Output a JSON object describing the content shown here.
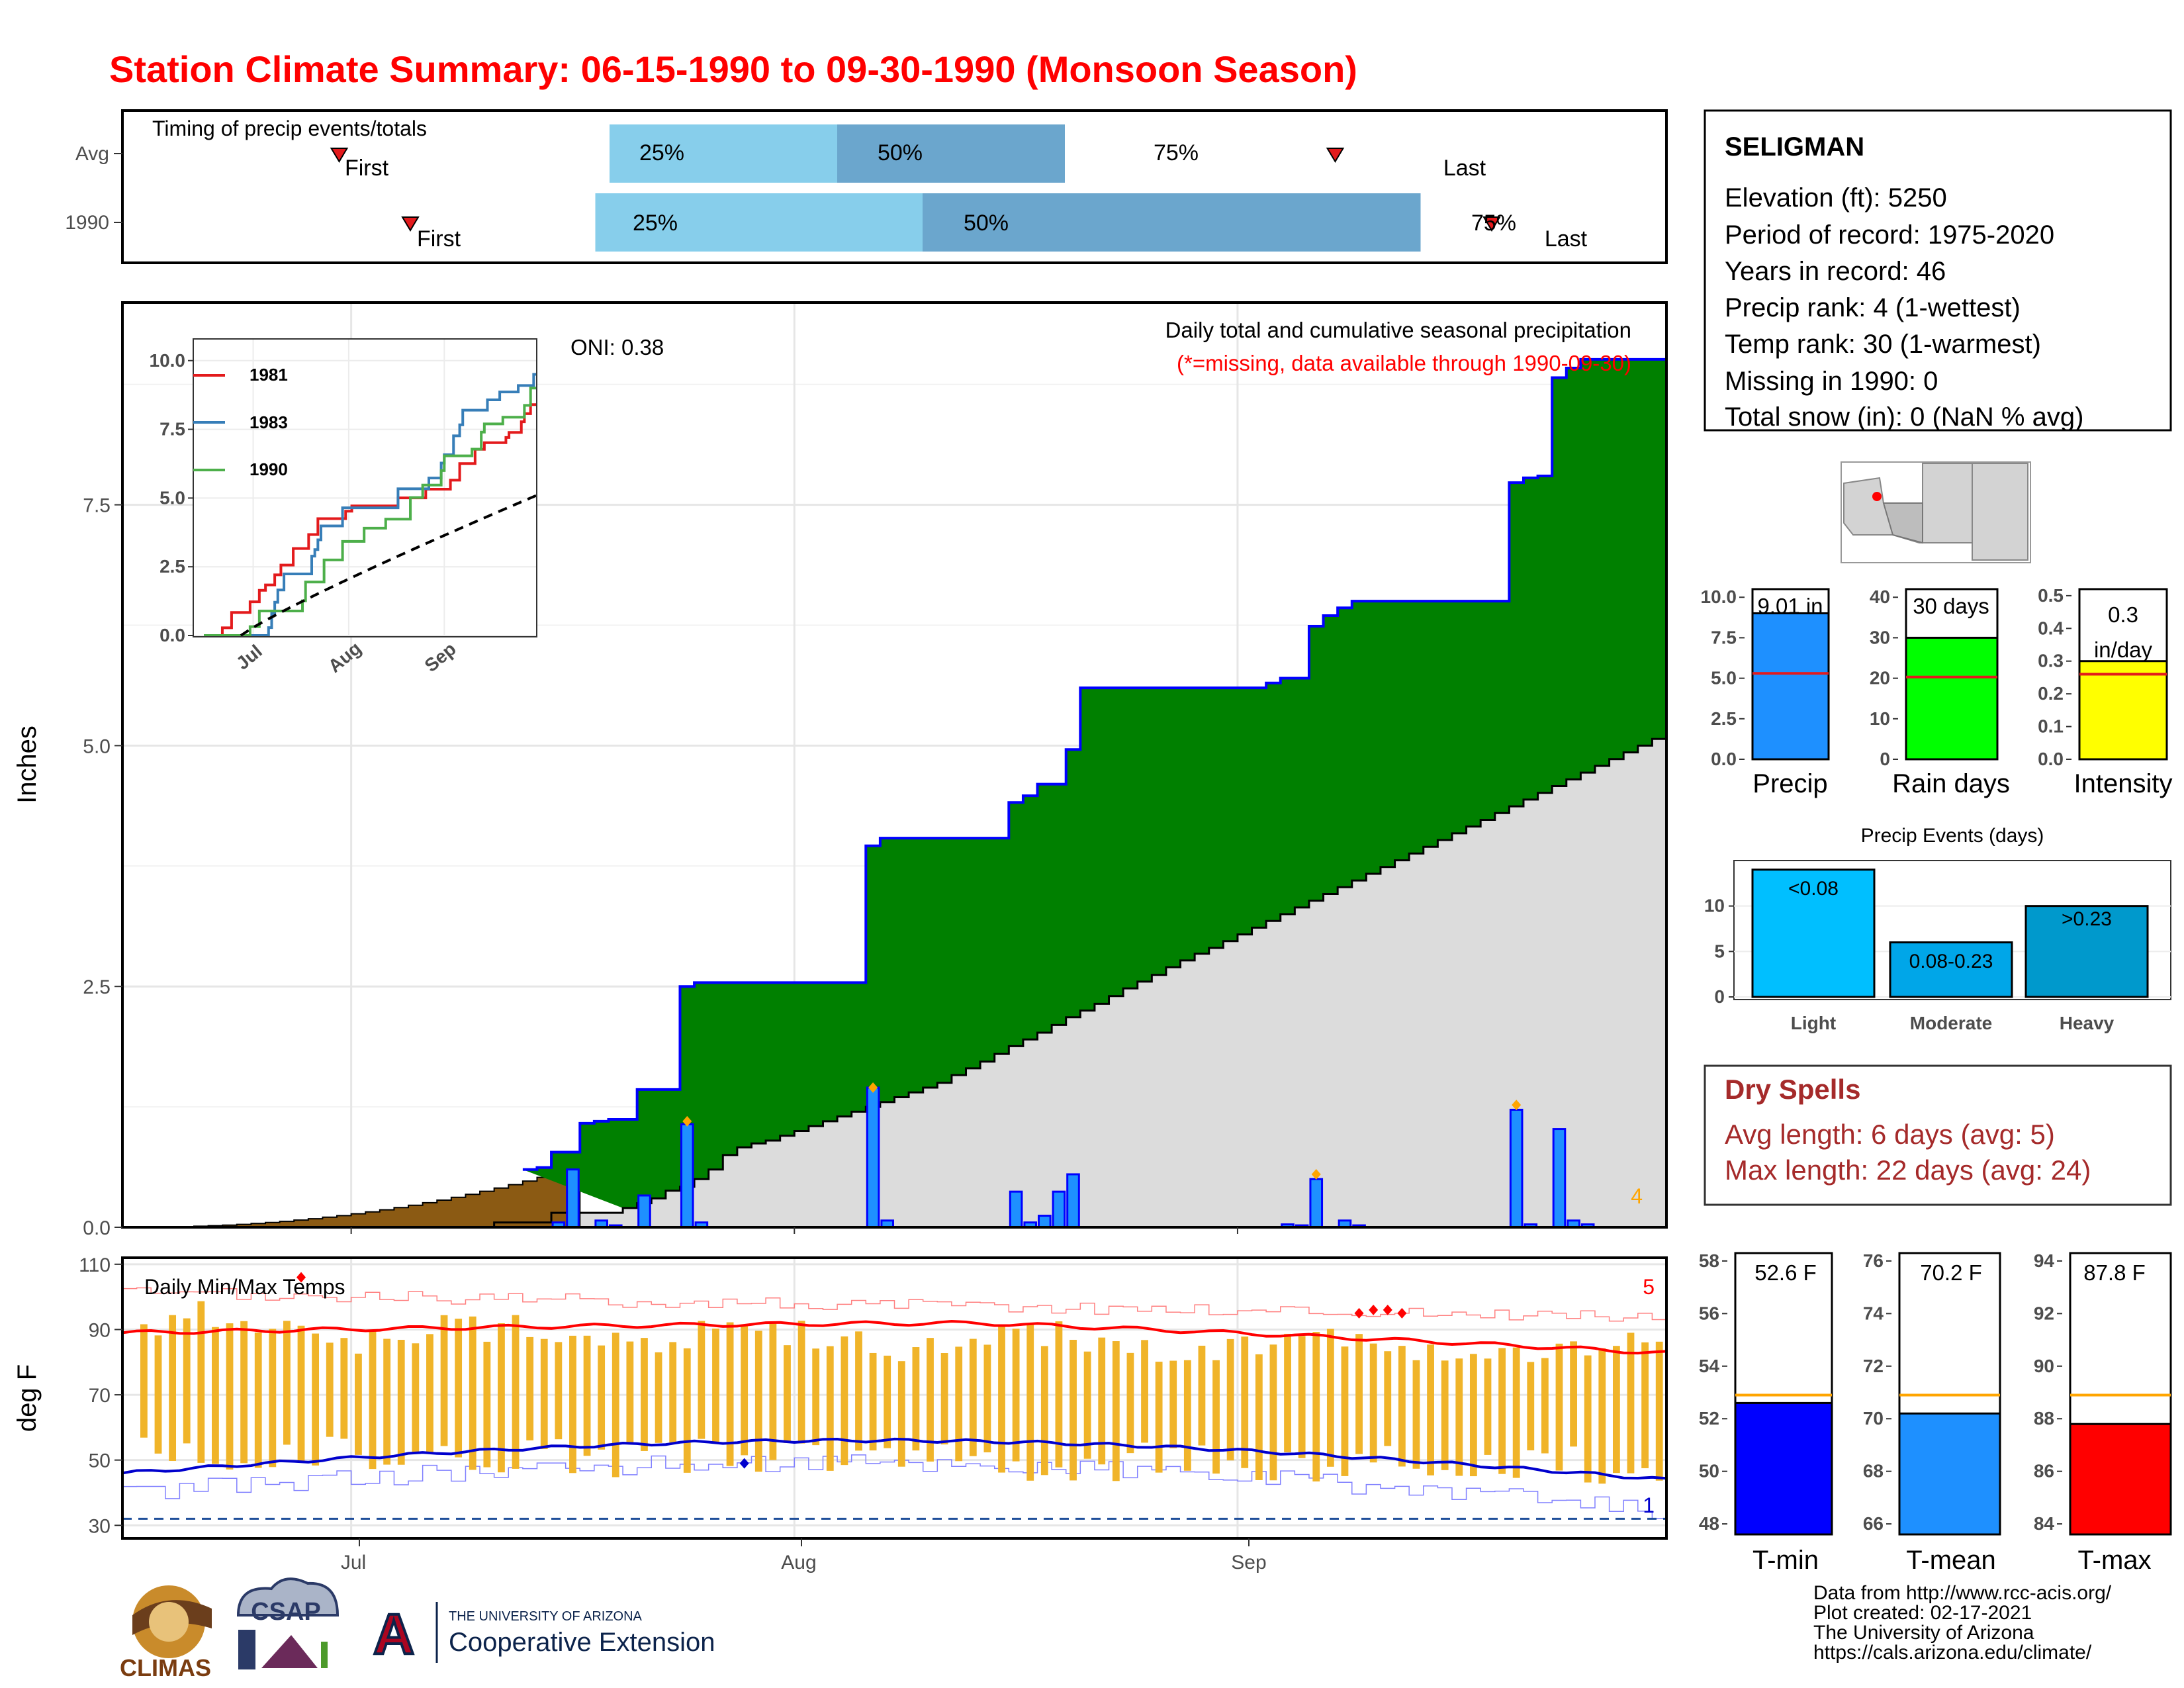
{
  "title": "Station Climate Summary: 06-15-1990 to 09-30-1990 (Monsoon Season)",
  "timing": {
    "heading": "Timing of precip events/totals",
    "rows": [
      {
        "label": "Avg",
        "first": "First",
        "last": "Last",
        "p25": "25%",
        "p50": "50%",
        "p75": "75%",
        "first_day": 15,
        "q25_day": 34,
        "q50_day": 50,
        "q75_day": 66,
        "last_day": 85
      },
      {
        "label": "1990",
        "first": "First",
        "last": "Last",
        "p25": "25%",
        "p50": "50%",
        "p75": "75%",
        "first_day": 20,
        "q25_day": 33,
        "q50_day": 56,
        "q75_day": 91,
        "last_day": 96
      }
    ],
    "colors": {
      "outer": "#87ceeb",
      "inner": "#6ba6cd",
      "marker": "#e31a1c"
    }
  },
  "info": {
    "station": "SELIGMAN",
    "lines": [
      "Elevation (ft): 5250",
      "Period of record: 1975-2020",
      "Years in record: 46",
      "Precip rank: 4 (1-wettest)",
      "Temp rank: 30 (1-warmest)",
      "Missing in 1990: 0",
      "Total snow (in): 0 (NaN % avg)"
    ]
  },
  "precip": {
    "y_axis_label": "Inches",
    "oni": "ONI: 0.38",
    "annotation": "Daily total and cumulative seasonal precipitation",
    "missing_note": "(*=missing, data available through 1990-09-30)",
    "corner_count": "4",
    "x_ticks": [
      "Jul",
      "Aug",
      "Sep"
    ],
    "y_ticks": [
      "0.0",
      "2.5",
      "5.0",
      "7.5"
    ]
  },
  "temps": {
    "label": "Daily Min/Max Temps",
    "y_axis_label": "deg F",
    "corner_max": "5",
    "corner_min": "1",
    "y_ticks": [
      "30",
      "50",
      "70",
      "90",
      "110"
    ],
    "x_ticks": [
      "Jul",
      "Aug",
      "Sep"
    ]
  },
  "inset": {
    "legend": [
      "1981",
      "1983",
      "1990"
    ],
    "x_ticks": [
      "Jul",
      "Aug",
      "Sep"
    ],
    "y_ticks": [
      "0.0",
      "2.5",
      "5.0",
      "7.5",
      "10.0"
    ],
    "colors": [
      "#e31a1c",
      "#377eb8",
      "#4daf4a"
    ]
  },
  "summary_bars": {
    "precip": {
      "label": "Precip",
      "value_label": "9.01 in",
      "value": 9.01,
      "avg": 5.3,
      "ymax": 10.5,
      "ticks": [
        "0.0",
        "2.5",
        "5.0",
        "7.5",
        "10.0"
      ],
      "color": "#1e90ff"
    },
    "rain_days": {
      "label": "Rain days",
      "value_label": "30 days",
      "value": 30,
      "avg": 20.3,
      "ymax": 42,
      "ticks": [
        "0",
        "10",
        "20",
        "30",
        "40"
      ],
      "color": "#00ff00"
    },
    "intensity": {
      "label": "Intensity",
      "value_label_1": "0.3",
      "value_label_2": "in/day",
      "value": 0.3,
      "avg": 0.26,
      "ymax": 0.52,
      "ticks": [
        "0.0",
        "0.1",
        "0.2",
        "0.3",
        "0.4",
        "0.5"
      ],
      "color": "#ffff00"
    }
  },
  "events": {
    "title": "Precip Events (days)",
    "categories": [
      "Light",
      "Moderate",
      "Heavy"
    ],
    "labels": [
      "<0.08",
      "0.08-0.23",
      ">0.23"
    ],
    "values": [
      14,
      6,
      10
    ],
    "ticks": [
      "0",
      "5",
      "10"
    ],
    "colors": [
      "#00bfff",
      "#00a6e8",
      "#0099cc"
    ]
  },
  "dry_spells": {
    "title": "Dry Spells",
    "avg_length": "Avg length: 6 days (avg: 5)",
    "max_length": "Max length: 22 days (avg: 24)"
  },
  "temp_bars": {
    "tmin": {
      "label": "T-min",
      "value_label": "52.6 F",
      "value": 52.6,
      "avg": 52.9,
      "ymin": 47.6,
      "ymax": 58.3,
      "ticks": [
        "48",
        "50",
        "52",
        "54",
        "56",
        "58"
      ],
      "color": "#0000ff"
    },
    "tmean": {
      "label": "T-mean",
      "value_label": "70.2 F",
      "value": 70.2,
      "avg": 70.9,
      "ymin": 65.6,
      "ymax": 76.3,
      "ticks": [
        "66",
        "68",
        "70",
        "72",
        "74",
        "76"
      ],
      "color": "#1e90ff"
    },
    "tmax": {
      "label": "T-max",
      "value_label": "87.8 F",
      "value": 87.8,
      "avg": 88.9,
      "ymin": 83.6,
      "ymax": 94.3,
      "ticks": [
        "84",
        "86",
        "88",
        "90",
        "92",
        "94"
      ],
      "color": "#ff0000"
    }
  },
  "footer": {
    "credit_lines": [
      "Data from http://www.rcc-acis.org/",
      "Plot created: 02-17-2021",
      "The University of Arizona",
      "https://cals.arizona.edu/climate/"
    ],
    "logo_climas": "CLIMAS",
    "logo_csap": "CSAP",
    "logo_ua_small": "THE UNIVERSITY OF ARIZONA",
    "logo_ua_big": "Cooperative Extension",
    "logo_ua_letter": "A"
  },
  "chart_data": [
    {
      "type": "area",
      "name": "Cumulative seasonal precipitation 1990 vs average",
      "x_start": "1990-06-15",
      "x_end": "1990-09-30",
      "ylim": [
        0,
        9.6
      ],
      "cumulative_1990_steps": [
        [
          0,
          0
        ],
        [
          26,
          0.05
        ],
        [
          30,
          0.15
        ],
        [
          35,
          0.2
        ],
        [
          36,
          0.25
        ],
        [
          37,
          0.3
        ],
        [
          38,
          0.38
        ],
        [
          39,
          0.42
        ],
        [
          40,
          0.5
        ],
        [
          41,
          0.6
        ],
        [
          42,
          0.75
        ],
        [
          43,
          0.83
        ],
        [
          44,
          0.87
        ],
        [
          45,
          0.9
        ],
        [
          46,
          0.95
        ],
        [
          47,
          1.0
        ],
        [
          48,
          1.05
        ],
        [
          49,
          1.1
        ],
        [
          50,
          1.15
        ],
        [
          51,
          1.2
        ],
        [
          52,
          1.25
        ],
        [
          53,
          1.3
        ],
        [
          54,
          1.35
        ],
        [
          55,
          1.4
        ],
        [
          56,
          1.45
        ],
        [
          57,
          1.5
        ],
        [
          58,
          1.58
        ],
        [
          59,
          1.65
        ],
        [
          60,
          1.72
        ],
        [
          61,
          1.8
        ],
        [
          62,
          1.88
        ],
        [
          63,
          1.95
        ],
        [
          64,
          2.02
        ],
        [
          65,
          2.1
        ],
        [
          66,
          2.18
        ],
        [
          67,
          2.25
        ],
        [
          68,
          2.32
        ],
        [
          69,
          2.4
        ],
        [
          70,
          2.48
        ],
        [
          71,
          2.55
        ],
        [
          72,
          2.62
        ],
        [
          73,
          2.7
        ],
        [
          74,
          2.77
        ],
        [
          75,
          2.84
        ],
        [
          76,
          2.9
        ],
        [
          77,
          2.97
        ],
        [
          78,
          3.04
        ],
        [
          79,
          3.11
        ],
        [
          80,
          3.18
        ],
        [
          81,
          3.25
        ],
        [
          82,
          3.32
        ],
        [
          83,
          3.39
        ],
        [
          84,
          3.46
        ],
        [
          85,
          3.53
        ],
        [
          86,
          3.6
        ],
        [
          87,
          3.67
        ],
        [
          88,
          3.74
        ],
        [
          89,
          3.81
        ],
        [
          90,
          3.88
        ],
        [
          91,
          3.95
        ],
        [
          92,
          4.02
        ],
        [
          93,
          4.09
        ],
        [
          94,
          4.16
        ],
        [
          95,
          4.23
        ],
        [
          96,
          4.3
        ],
        [
          97,
          4.37
        ],
        [
          98,
          4.44
        ],
        [
          99,
          4.51
        ],
        [
          100,
          4.58
        ],
        [
          101,
          4.65
        ],
        [
          102,
          4.72
        ],
        [
          103,
          4.79
        ],
        [
          104,
          4.86
        ],
        [
          105,
          4.93
        ],
        [
          106,
          5.0
        ],
        [
          107,
          5.07
        ]
      ],
      "cumulative_1990": [
        [
          28,
          0.6
        ],
        [
          29,
          0.62
        ],
        [
          30,
          0.78
        ],
        [
          32,
          1.08
        ],
        [
          33,
          1.1
        ],
        [
          34,
          1.12
        ],
        [
          36,
          1.43
        ],
        [
          38,
          1.43
        ],
        [
          39,
          2.5
        ],
        [
          40,
          2.54
        ],
        [
          51,
          2.54
        ],
        [
          52,
          3.96
        ],
        [
          53,
          4.04
        ],
        [
          61,
          4.04
        ],
        [
          62,
          4.41
        ],
        [
          63,
          4.48
        ],
        [
          64,
          4.6
        ],
        [
          66,
          4.96
        ],
        [
          67,
          5.6
        ],
        [
          80,
          5.65
        ],
        [
          81,
          5.7
        ],
        [
          82,
          5.7
        ],
        [
          83,
          6.24
        ],
        [
          84,
          6.35
        ],
        [
          85,
          6.43
        ],
        [
          86,
          6.5
        ],
        [
          96,
          6.5
        ],
        [
          97,
          7.73
        ],
        [
          98,
          7.78
        ],
        [
          99,
          7.8
        ],
        [
          100,
          8.82
        ],
        [
          101,
          8.92
        ],
        [
          102,
          9.01
        ],
        [
          107,
          9.01
        ]
      ],
      "average_cumulative_note": "gray area up to ~5.1 at season end",
      "daily_precip": [
        [
          30,
          0.05
        ],
        [
          31,
          0.6
        ],
        [
          33,
          0.07
        ],
        [
          34,
          0.02
        ],
        [
          36,
          0.33
        ],
        [
          39,
          1.07
        ],
        [
          40,
          0.05
        ],
        [
          52,
          1.45
        ],
        [
          53,
          0.07
        ],
        [
          62,
          0.37
        ],
        [
          63,
          0.05
        ],
        [
          64,
          0.12
        ],
        [
          65,
          0.37
        ],
        [
          66,
          0.55
        ],
        [
          81,
          0.03
        ],
        [
          82,
          0.02
        ],
        [
          83,
          0.5
        ],
        [
          85,
          0.07
        ],
        [
          86,
          0.02
        ],
        [
          97,
          1.22
        ],
        [
          98,
          0.03
        ],
        [
          100,
          1.02
        ],
        [
          101,
          0.07
        ],
        [
          102,
          0.03
        ]
      ]
    },
    {
      "type": "bar",
      "name": "Daily Min/Max Temps",
      "ylim": [
        26,
        112
      ],
      "note": "orange bars span daily min to max; red line = avg max; blue line = avg min",
      "tmax_avg_endpoints": [
        89,
        82
      ],
      "tmin_avg_endpoints": [
        46,
        44
      ]
    },
    {
      "type": "line",
      "name": "Cumulative precipitation comparison (inset)",
      "series": [
        {
          "name": "1981",
          "final": 8.4
        },
        {
          "name": "1983",
          "final": 9.5
        },
        {
          "name": "1990",
          "final": 9.0
        }
      ],
      "ylim": [
        0,
        10.5
      ]
    }
  ]
}
